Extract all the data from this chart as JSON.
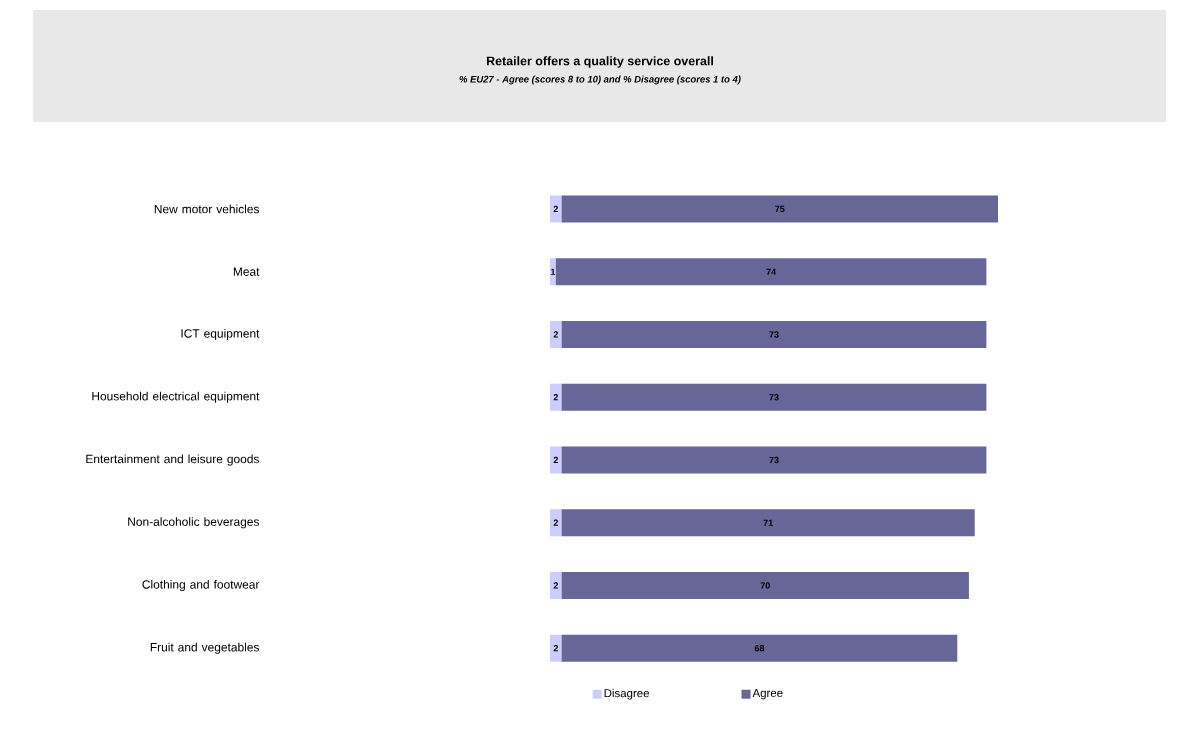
{
  "chart_data": {
    "type": "bar",
    "orientation": "horizontal",
    "stacked": true,
    "title": "Retailer offers a quality service overall",
    "subtitle": "% EU27 - Agree (scores 8 to 10) and %  Disagree (scores 1 to 4)",
    "categories": [
      "New motor vehicles",
      "Meat",
      "ICT equipment",
      "Household electrical equipment",
      "Entertainment and leisure goods",
      "Non-alcoholic beverages",
      "Clothing and footwear",
      "Fruit and vegetables"
    ],
    "series": [
      {
        "name": "Disagree",
        "color": "#ccccff",
        "values": [
          2,
          1,
          2,
          2,
          2,
          2,
          2,
          2
        ]
      },
      {
        "name": "Agree",
        "color": "#666699",
        "values": [
          75,
          74,
          73,
          73,
          73,
          71,
          70,
          68
        ]
      }
    ],
    "data_labels": true,
    "legend": "bottom",
    "tick_labels": "y"
  }
}
